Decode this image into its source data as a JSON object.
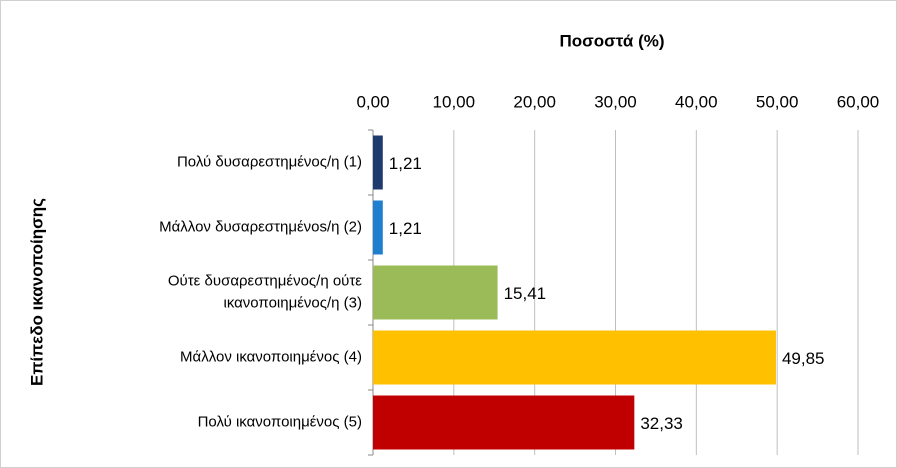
{
  "chart_data": {
    "type": "bar",
    "orientation": "horizontal",
    "x_axis_label": "Ποσοστά (%)",
    "y_axis_label": "Επίπεδο ικανοποίησης",
    "categories": [
      "Πολύ δυσαρεστημένος/η (1)",
      "Μάλλον δυσαρεστημένοs/η (2)",
      "Ούτε δυσαρεστημένος/η ούτε\nικανοποιημένος/η (3)",
      "Μάλλον ικανοποιημένος (4)",
      "Πολύ ικανοποιημένος (5)"
    ],
    "values": [
      1.21,
      1.21,
      15.41,
      49.85,
      32.33
    ],
    "value_labels": [
      "1,21",
      "1,21",
      "15,41",
      "49,85",
      "32,33"
    ],
    "colors": [
      "#1f3a6e",
      "#1f7fcf",
      "#9bbb59",
      "#ffc000",
      "#c00000"
    ],
    "xlim": [
      0,
      60
    ],
    "xticks": [
      {
        "value": 0,
        "label": "0,00"
      },
      {
        "value": 10,
        "label": "10,00"
      },
      {
        "value": 20,
        "label": "20,00"
      },
      {
        "value": 30,
        "label": "30,00"
      },
      {
        "value": 40,
        "label": "40,00"
      },
      {
        "value": 50,
        "label": "50,00"
      },
      {
        "value": 60,
        "label": "60,00"
      }
    ],
    "grid": true
  }
}
